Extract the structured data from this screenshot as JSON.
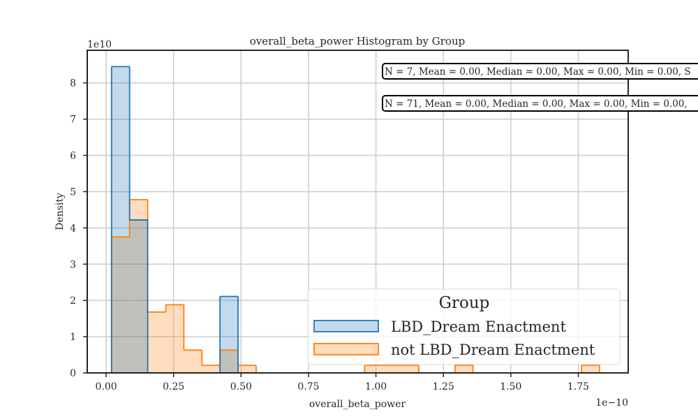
{
  "chart_data": {
    "type": "histogram",
    "title": "overall_beta_power Histogram by Group",
    "xlabel": "overall_beta_power",
    "ylabel": "Density",
    "x_offset_text": "1e−10",
    "y_offset_text": "1e10",
    "x_scale": 1e-10,
    "y_scale": 10000000000.0,
    "xlim": [
      -0.07,
      1.935
    ],
    "ylim": [
      0,
      8.9
    ],
    "x_ticks": [
      0.0,
      0.25,
      0.5,
      0.75,
      1.0,
      1.25,
      1.5,
      1.75
    ],
    "x_tick_labels": [
      "0.00",
      "0.25",
      "0.50",
      "0.75",
      "1.00",
      "1.25",
      "1.50",
      "1.75"
    ],
    "y_ticks": [
      0,
      1,
      2,
      3,
      4,
      5,
      6,
      7,
      8
    ],
    "y_tick_labels": [
      "0",
      "1",
      "2",
      "3",
      "4",
      "5",
      "6",
      "7",
      "8"
    ],
    "grid": true,
    "legend_position": "lower-right",
    "legend_title": "Group",
    "bin_edges": [
      0.02,
      0.087,
      0.154,
      0.221,
      0.288,
      0.355,
      0.422,
      0.489,
      0.556,
      0.623,
      0.69,
      0.757,
      0.824,
      0.891,
      0.958,
      1.025,
      1.092,
      1.159,
      1.226,
      1.293,
      1.36,
      1.427,
      1.494,
      1.561,
      1.628,
      1.695,
      1.762,
      1.829
    ],
    "series": [
      {
        "name": "LBD_Dream Enactment",
        "color": "#1f77b4",
        "fill": "rgba(31,119,180,0.27)",
        "values": [
          8.45,
          4.22,
          0,
          0,
          0,
          0,
          2.11,
          0,
          0,
          0,
          0,
          0,
          0,
          0,
          0,
          0,
          0,
          0,
          0,
          0,
          0,
          0,
          0,
          0,
          0,
          0,
          0
        ]
      },
      {
        "name": "not LBD_Dream Enactment",
        "color": "#ff7f0e",
        "fill": "rgba(255,127,14,0.27)",
        "values": [
          3.75,
          4.78,
          1.68,
          1.88,
          0.63,
          0.21,
          0.63,
          0.21,
          0,
          0,
          0,
          0,
          0,
          0,
          0.21,
          0.21,
          0.21,
          0,
          0,
          0.21,
          0,
          0,
          0,
          0,
          0,
          0,
          0.21
        ]
      }
    ],
    "stats_boxes": [
      "N = 7, Mean = 0.00, Median = 0.00, Max = 0.00, Min = 0.00, S",
      "N = 71, Mean = 0.00, Median = 0.00, Max = 0.00, Min = 0.00,"
    ]
  }
}
